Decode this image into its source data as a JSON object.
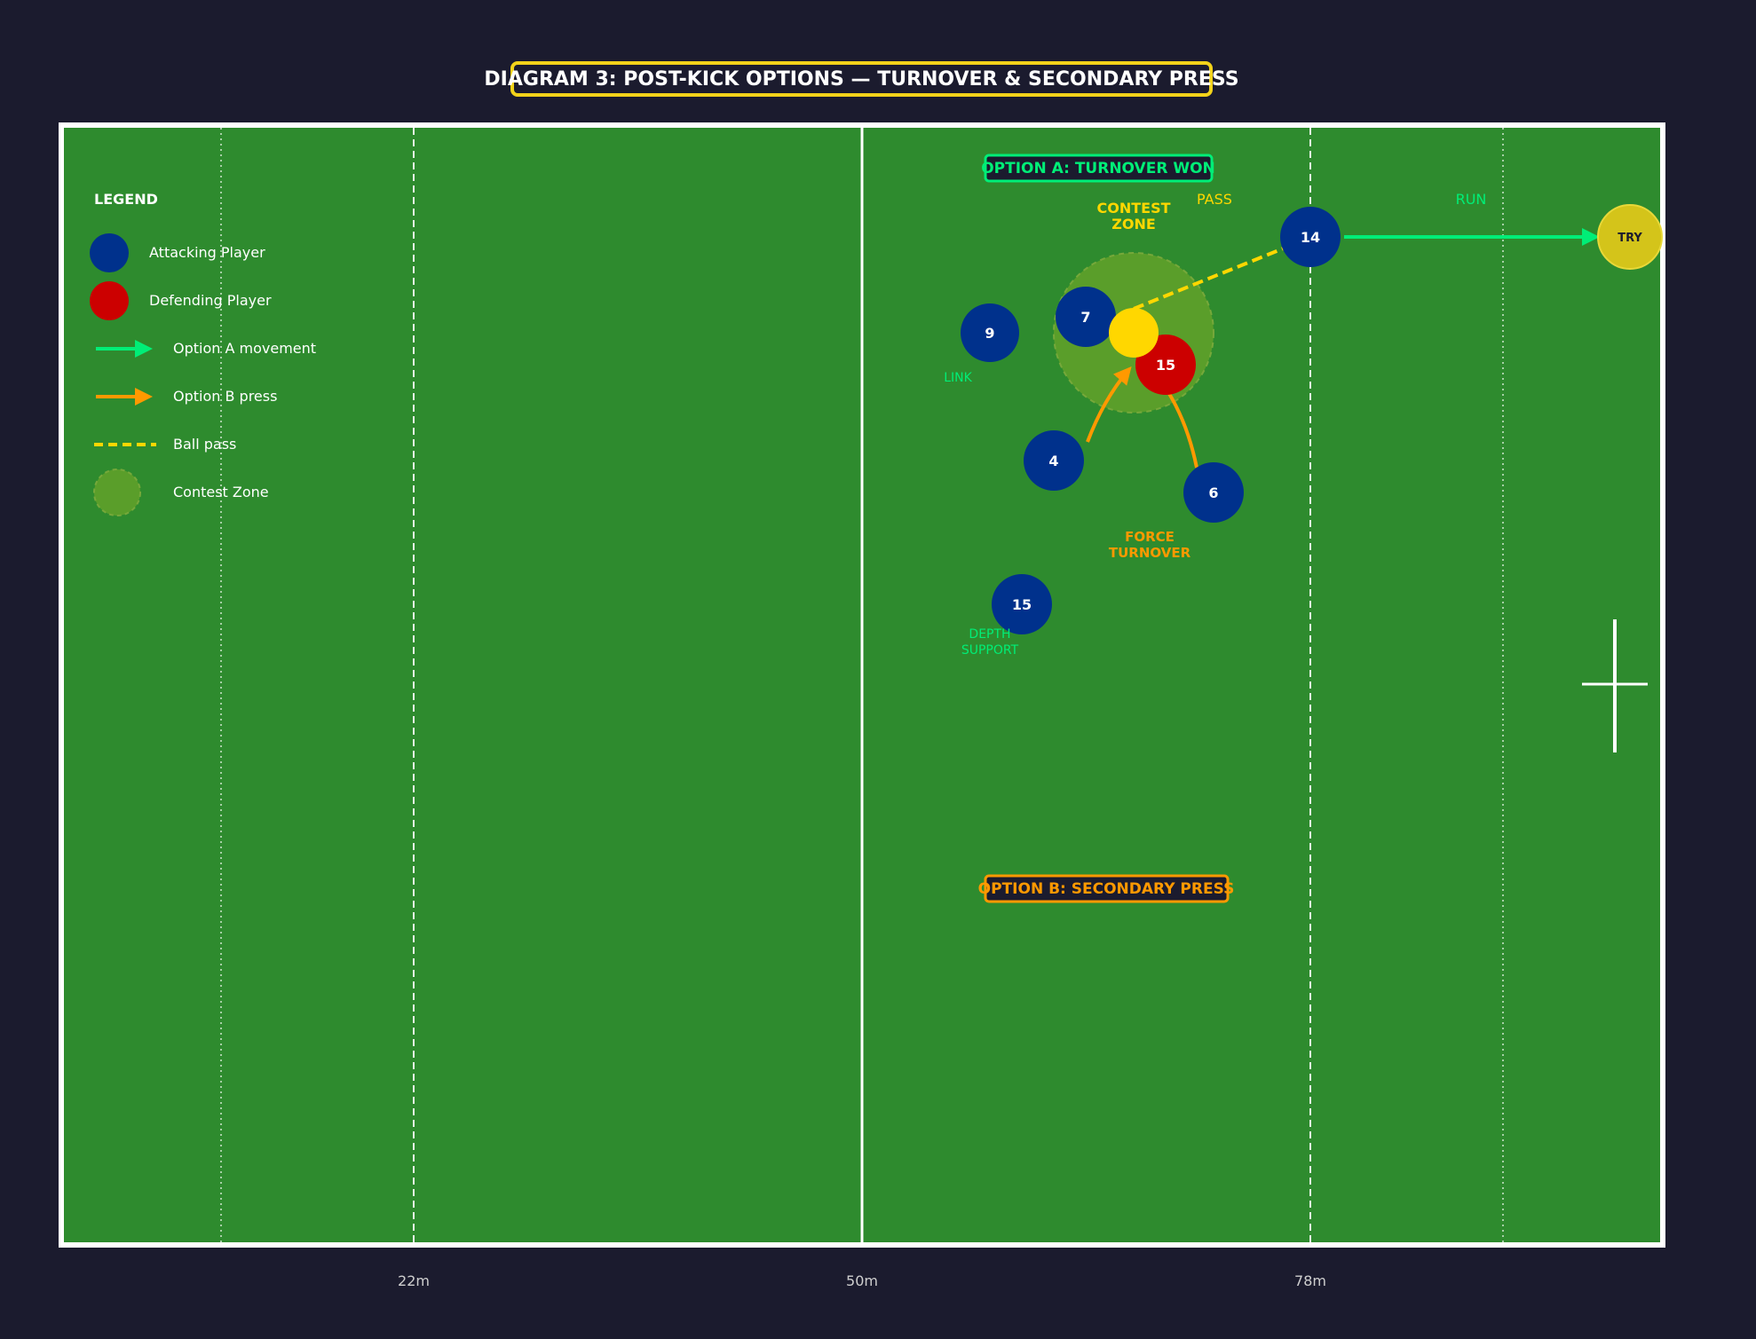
{
  "title": "DIAGRAM 3: POST-KICK OPTIONS — TURNOVER & SECONDARY PRESS",
  "colors": {
    "background": "#1b1b2e",
    "pitch": "#2e8b2e",
    "attacking": "#00318c",
    "defending": "#cc0000",
    "ball": "#ffd700",
    "option_a": "#00ee77",
    "option_b": "#ff9900",
    "pass": "#ffd700",
    "contest_zone": "#5a9e2a",
    "try_marker": "#d4c41a",
    "title_border": "#f2d21a"
  },
  "pitch": {
    "line_labels": {
      "l22": "22m",
      "l50": "50m",
      "l78": "78m"
    }
  },
  "legend": {
    "heading": "LEGEND",
    "attacking": "Attacking Player",
    "defending": "Defending Player",
    "option_a": "Option A movement",
    "option_b": "Option B press",
    "pass": "Ball pass",
    "zone": "Contest Zone"
  },
  "option_a": {
    "label": "OPTION A: TURNOVER WON"
  },
  "option_b": {
    "label": "OPTION B: SECONDARY PRESS"
  },
  "zone": {
    "line1": "CONTEST",
    "line2": "ZONE"
  },
  "players": {
    "p9": "9",
    "p7": "7",
    "p4": "4",
    "p6": "6",
    "p15a": "15",
    "p14": "14",
    "d15": "15"
  },
  "try_label": "TRY",
  "annotations": {
    "pass": "PASS",
    "run": "RUN",
    "link": "LINK",
    "force1": "FORCE",
    "force2": "TURNOVER",
    "depth1": "DEPTH",
    "depth2": "SUPPORT"
  }
}
